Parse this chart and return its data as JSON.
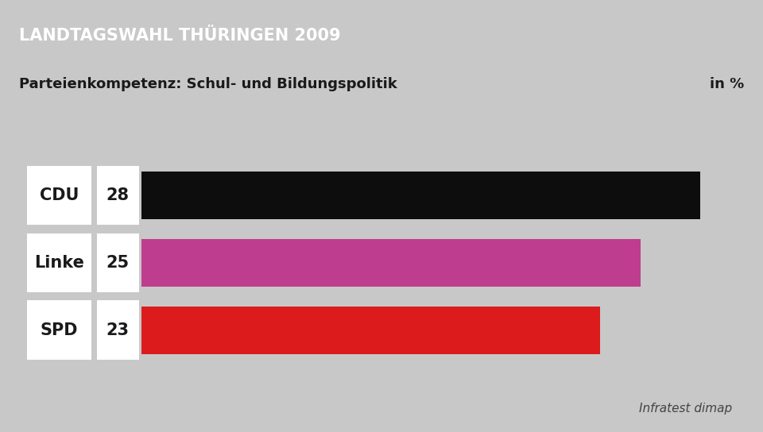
{
  "title": "LANDTAGSWAHL THÜRINGEN 2009",
  "subtitle": "Parteienkompetenz: Schul- und Bildungspolitik",
  "subtitle_right": "in %",
  "title_bg_color": "#1a3570",
  "title_text_color": "#ffffff",
  "bg_color": "#c8c8c8",
  "white_box_color": "#ffffff",
  "categories": [
    "CDU",
    "Linke",
    "SPD"
  ],
  "values": [
    28,
    25,
    23
  ],
  "bar_colors": [
    "#0d0d0d",
    "#be3d8f",
    "#dc1c1c"
  ],
  "source": "Infratest dimap",
  "label_fontsize": 15,
  "value_fontsize": 15,
  "title_fontsize": 15,
  "subtitle_fontsize": 13,
  "source_fontsize": 11
}
